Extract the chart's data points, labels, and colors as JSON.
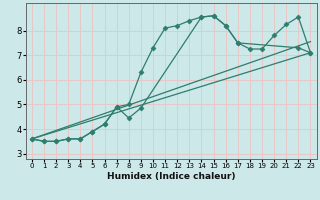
{
  "title": "",
  "xlabel": "Humidex (Indice chaleur)",
  "background_color": "#cce8e8",
  "grid_color": "#e8c8c8",
  "line_color": "#2e7d6e",
  "xlim": [
    -0.5,
    23.5
  ],
  "ylim": [
    2.8,
    9.1
  ],
  "yticks": [
    3,
    4,
    5,
    6,
    7,
    8
  ],
  "xticks": [
    0,
    1,
    2,
    3,
    4,
    5,
    6,
    7,
    8,
    9,
    10,
    11,
    12,
    13,
    14,
    15,
    16,
    17,
    18,
    19,
    20,
    21,
    22,
    23
  ],
  "lines": [
    {
      "x": [
        0,
        1,
        2,
        3,
        4,
        5,
        6,
        7,
        8,
        9,
        10,
        11,
        12,
        13,
        14,
        15,
        16,
        17,
        18,
        19,
        20,
        21,
        22,
        23
      ],
      "y": [
        3.6,
        3.5,
        3.5,
        3.6,
        3.6,
        3.9,
        4.2,
        4.9,
        5.0,
        6.3,
        7.3,
        8.1,
        8.2,
        8.4,
        8.55,
        8.6,
        8.2,
        7.5,
        7.25,
        7.25,
        7.8,
        8.25,
        8.55,
        7.1
      ],
      "markers": true
    },
    {
      "x": [
        0,
        1,
        2,
        3,
        4,
        5,
        6,
        7,
        8,
        9,
        14,
        15,
        16,
        17,
        22,
        23
      ],
      "y": [
        3.6,
        3.5,
        3.5,
        3.6,
        3.6,
        3.9,
        4.2,
        4.9,
        4.45,
        4.85,
        8.55,
        8.6,
        8.2,
        7.5,
        7.3,
        7.1
      ],
      "markers": true
    },
    {
      "x": [
        0,
        23
      ],
      "y": [
        3.6,
        7.1
      ],
      "markers": false
    },
    {
      "x": [
        0,
        23
      ],
      "y": [
        3.6,
        7.55
      ],
      "markers": false
    }
  ]
}
